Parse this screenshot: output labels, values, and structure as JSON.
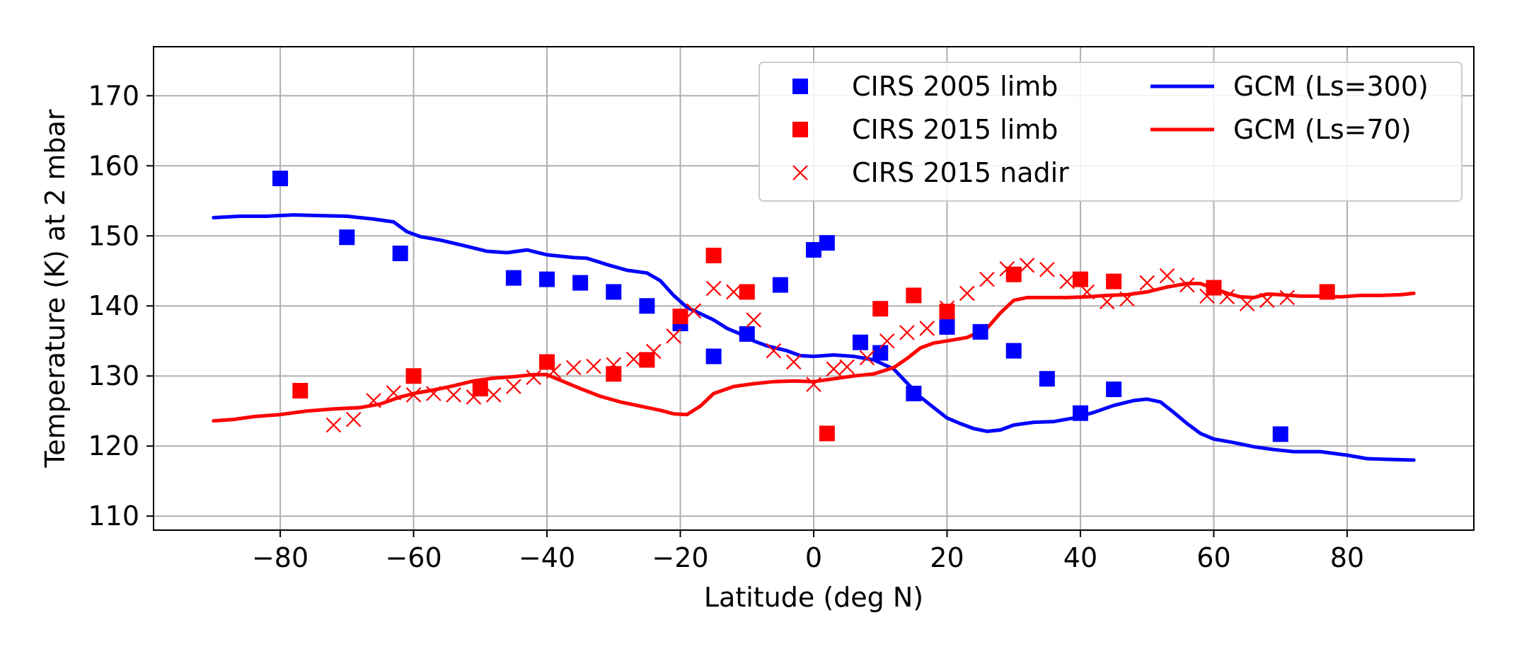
{
  "chart_data": {
    "type": "scatter",
    "title": "",
    "xlabel": "Latitude (deg N)",
    "ylabel": "Temperature (K) at 2 mbar",
    "xlim": [
      -99,
      99
    ],
    "ylim": [
      108,
      177
    ],
    "xticks": [
      -80,
      -60,
      -40,
      -20,
      0,
      20,
      40,
      60,
      80
    ],
    "xtick_labels": [
      "−80",
      "−60",
      "−40",
      "−20",
      "0",
      "20",
      "40",
      "60",
      "80"
    ],
    "yticks": [
      110,
      120,
      130,
      140,
      150,
      160,
      170
    ],
    "ytick_labels": [
      "110",
      "120",
      "130",
      "140",
      "150",
      "160",
      "170"
    ],
    "grid": true,
    "legend_position": "top-right",
    "series": [
      {
        "name": "CIRS 2005 limb",
        "kind": "square",
        "color": "#0000ff",
        "points": [
          [
            -80,
            158.2
          ],
          [
            -70,
            149.8
          ],
          [
            -62,
            147.5
          ],
          [
            -45,
            144
          ],
          [
            -40,
            143.8
          ],
          [
            -35,
            143.3
          ],
          [
            -30,
            142
          ],
          [
            -25,
            140
          ],
          [
            -20,
            137.5
          ],
          [
            -15,
            132.8
          ],
          [
            -10,
            136
          ],
          [
            -5,
            143
          ],
          [
            0,
            148
          ],
          [
            2,
            149
          ],
          [
            7,
            134.8
          ],
          [
            10,
            133.3
          ],
          [
            15,
            127.5
          ],
          [
            20,
            137
          ],
          [
            25,
            136.3
          ],
          [
            30,
            133.6
          ],
          [
            35,
            129.6
          ],
          [
            40,
            124.7
          ],
          [
            45,
            128.1
          ],
          [
            70,
            121.7
          ]
        ]
      },
      {
        "name": "CIRS 2015 limb",
        "kind": "square",
        "color": "#ff0000",
        "points": [
          [
            -77,
            127.9
          ],
          [
            -60,
            130
          ],
          [
            -50,
            128.2
          ],
          [
            -40,
            132
          ],
          [
            -30,
            130.3
          ],
          [
            -25,
            132.3
          ],
          [
            -20,
            138.5
          ],
          [
            -15,
            147.2
          ],
          [
            -10,
            142
          ],
          [
            2,
            121.8
          ],
          [
            10,
            139.6
          ],
          [
            15,
            141.5
          ],
          [
            20,
            139.2
          ],
          [
            30,
            144.5
          ],
          [
            40,
            143.8
          ],
          [
            45,
            143.5
          ],
          [
            60,
            142.6
          ],
          [
            77,
            142
          ]
        ]
      },
      {
        "name": "CIRS 2015 nadir",
        "kind": "cross",
        "color": "#ff0000",
        "points": [
          [
            -72,
            123
          ],
          [
            -69,
            123.8
          ],
          [
            -66,
            126.5
          ],
          [
            -63,
            127.6
          ],
          [
            -60,
            127.3
          ],
          [
            -57,
            127.5
          ],
          [
            -54,
            127.3
          ],
          [
            -51,
            127
          ],
          [
            -48,
            127.3
          ],
          [
            -45,
            128.5
          ],
          [
            -42,
            129.8
          ],
          [
            -39,
            130.7
          ],
          [
            -36,
            131.2
          ],
          [
            -33,
            131.4
          ],
          [
            -30,
            131.6
          ],
          [
            -27,
            132.4
          ],
          [
            -24,
            133.5
          ],
          [
            -21,
            135.7
          ],
          [
            -18,
            139.3
          ],
          [
            -15,
            142.5
          ],
          [
            -12,
            142
          ],
          [
            -9,
            138
          ],
          [
            -6,
            133.6
          ],
          [
            -3,
            132
          ],
          [
            0,
            128.8
          ],
          [
            3,
            131
          ],
          [
            5,
            131.3
          ],
          [
            8,
            132.6
          ],
          [
            11,
            135
          ],
          [
            14,
            136.2
          ],
          [
            17,
            136.8
          ],
          [
            20,
            139.7
          ],
          [
            23,
            141.8
          ],
          [
            26,
            143.8
          ],
          [
            29,
            145.3
          ],
          [
            32,
            145.8
          ],
          [
            35,
            145.2
          ],
          [
            38,
            143.5
          ],
          [
            41,
            142
          ],
          [
            44,
            140.6
          ],
          [
            47,
            141
          ],
          [
            50,
            143.3
          ],
          [
            53,
            144.3
          ],
          [
            56,
            143
          ],
          [
            59,
            141.4
          ],
          [
            62,
            141.3
          ],
          [
            65,
            140.3
          ],
          [
            68,
            140.8
          ],
          [
            71,
            141.2
          ]
        ]
      },
      {
        "name": "GCM (Ls=300)",
        "kind": "line",
        "color": "#0000ff",
        "points": [
          [
            -90,
            152.6
          ],
          [
            -86,
            152.8
          ],
          [
            -82,
            152.8
          ],
          [
            -78,
            153
          ],
          [
            -74,
            152.9
          ],
          [
            -70,
            152.8
          ],
          [
            -66,
            152.4
          ],
          [
            -63,
            152
          ],
          [
            -61,
            150.6
          ],
          [
            -59,
            149.9
          ],
          [
            -56,
            149.4
          ],
          [
            -52,
            148.5
          ],
          [
            -49,
            147.8
          ],
          [
            -46,
            147.6
          ],
          [
            -43,
            148
          ],
          [
            -40,
            147.3
          ],
          [
            -36,
            146.9
          ],
          [
            -34,
            146.8
          ],
          [
            -31,
            145.9
          ],
          [
            -28,
            145.1
          ],
          [
            -25,
            144.7
          ],
          [
            -23,
            143.6
          ],
          [
            -21,
            141.5
          ],
          [
            -19,
            139.8
          ],
          [
            -17,
            138.9
          ],
          [
            -15,
            138
          ],
          [
            -13,
            136.8
          ],
          [
            -11,
            136
          ],
          [
            -9,
            135
          ],
          [
            -7,
            134.3
          ],
          [
            -4,
            133.6
          ],
          [
            -2,
            132.9
          ],
          [
            0,
            132.8
          ],
          [
            3,
            133
          ],
          [
            6,
            132.8
          ],
          [
            9,
            132.3
          ],
          [
            12,
            131
          ],
          [
            14,
            129
          ],
          [
            16,
            127
          ],
          [
            18,
            125.5
          ],
          [
            20,
            124
          ],
          [
            22,
            123.2
          ],
          [
            24,
            122.5
          ],
          [
            26,
            122.1
          ],
          [
            28,
            122.3
          ],
          [
            30,
            123
          ],
          [
            33,
            123.4
          ],
          [
            36,
            123.5
          ],
          [
            39,
            124
          ],
          [
            42,
            124.8
          ],
          [
            45,
            125.8
          ],
          [
            48,
            126.5
          ],
          [
            50,
            126.7
          ],
          [
            52,
            126.3
          ],
          [
            54,
            124.8
          ],
          [
            56,
            123.2
          ],
          [
            58,
            121.8
          ],
          [
            60,
            121
          ],
          [
            63,
            120.5
          ],
          [
            66,
            119.9
          ],
          [
            69,
            119.5
          ],
          [
            72,
            119.2
          ],
          [
            76,
            119.2
          ],
          [
            80,
            118.7
          ],
          [
            83,
            118.2
          ],
          [
            86,
            118.1
          ],
          [
            90,
            118
          ]
        ]
      },
      {
        "name": "GCM (Ls=70)",
        "kind": "line",
        "color": "#ff0000",
        "points": [
          [
            -90,
            123.6
          ],
          [
            -87,
            123.8
          ],
          [
            -84,
            124.2
          ],
          [
            -80,
            124.5
          ],
          [
            -76,
            125
          ],
          [
            -72,
            125.3
          ],
          [
            -68,
            125.5
          ],
          [
            -65,
            126
          ],
          [
            -62,
            127
          ],
          [
            -60,
            127.5
          ],
          [
            -57,
            128
          ],
          [
            -54,
            128.6
          ],
          [
            -51,
            129.3
          ],
          [
            -48,
            129.7
          ],
          [
            -45,
            129.9
          ],
          [
            -42,
            130.2
          ],
          [
            -40,
            130.2
          ],
          [
            -38,
            129.4
          ],
          [
            -35,
            128.2
          ],
          [
            -32,
            127.1
          ],
          [
            -29,
            126.3
          ],
          [
            -26,
            125.7
          ],
          [
            -23,
            125.1
          ],
          [
            -21,
            124.6
          ],
          [
            -19,
            124.5
          ],
          [
            -17,
            125.7
          ],
          [
            -15,
            127.5
          ],
          [
            -12,
            128.5
          ],
          [
            -9,
            128.9
          ],
          [
            -6,
            129.2
          ],
          [
            -3,
            129.3
          ],
          [
            0,
            129.2
          ],
          [
            3,
            129.6
          ],
          [
            6,
            130
          ],
          [
            9,
            130.3
          ],
          [
            12,
            131.2
          ],
          [
            14,
            132.5
          ],
          [
            16,
            134
          ],
          [
            18,
            134.7
          ],
          [
            20,
            135
          ],
          [
            23,
            135.5
          ],
          [
            26,
            136.8
          ],
          [
            28,
            139
          ],
          [
            30,
            140.8
          ],
          [
            32,
            141.2
          ],
          [
            35,
            141.2
          ],
          [
            38,
            141.2
          ],
          [
            41,
            141.3
          ],
          [
            44,
            141.5
          ],
          [
            47,
            141.6
          ],
          [
            50,
            142
          ],
          [
            53,
            142.7
          ],
          [
            56,
            143.2
          ],
          [
            58,
            143.2
          ],
          [
            60,
            142.5
          ],
          [
            62,
            141.8
          ],
          [
            64,
            141.3
          ],
          [
            66,
            141.2
          ],
          [
            68,
            141.7
          ],
          [
            70,
            141.6
          ],
          [
            73,
            141.4
          ],
          [
            76,
            141.4
          ],
          [
            79,
            141.3
          ],
          [
            82,
            141.5
          ],
          [
            85,
            141.5
          ],
          [
            88,
            141.6
          ],
          [
            90,
            141.8
          ]
        ]
      }
    ]
  }
}
